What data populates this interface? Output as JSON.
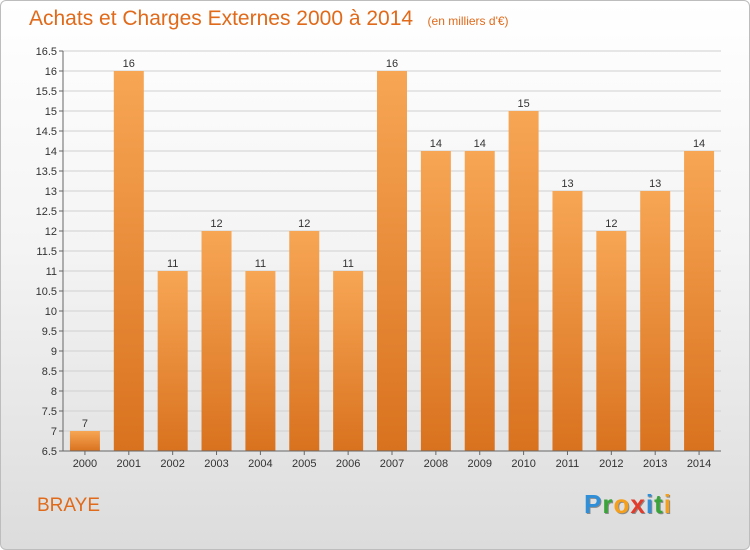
{
  "header": {
    "title": "Achats et Charges Externes 2000 à 2014",
    "subtitle": "(en milliers d'€)"
  },
  "footer": {
    "location": "BRAYE",
    "logo_text": "Proxiti",
    "logo_letters": [
      "P",
      "r",
      "o",
      "x",
      "i",
      "t",
      "i"
    ],
    "logo_colors": [
      "#2f8fd8",
      "#3aa33a",
      "#f4a01c",
      "#e33b2b",
      "#2f8fd8",
      "#3aa33a",
      "#f4a01c"
    ]
  },
  "chart_data": {
    "type": "bar",
    "title": "Achats et Charges Externes 2000 à 2014",
    "subtitle": "(en milliers d'€)",
    "xlabel": "",
    "ylabel": "",
    "categories": [
      "2000",
      "2001",
      "2002",
      "2003",
      "2004",
      "2005",
      "2006",
      "2007",
      "2008",
      "2009",
      "2010",
      "2011",
      "2012",
      "2013",
      "2014"
    ],
    "values": [
      7,
      16,
      11,
      12,
      11,
      12,
      11,
      16,
      14,
      14,
      15,
      13,
      12,
      13,
      14
    ],
    "value_labels": [
      "7",
      "16",
      "11",
      "12",
      "11",
      "12",
      "11",
      "16",
      "14",
      "14",
      "15",
      "13",
      "12",
      "13",
      "14"
    ],
    "ylim": [
      6.5,
      16.5
    ],
    "yticks": [
      6.5,
      7,
      7.5,
      8,
      8.5,
      9,
      9.5,
      10,
      10.5,
      11,
      11.5,
      12,
      12.5,
      13,
      13.5,
      14,
      14.5,
      15,
      15.5,
      16,
      16.5
    ],
    "ytick_labels": [
      "6.5",
      "7",
      "7.5",
      "8",
      "8.5",
      "9",
      "9.5",
      "10",
      "10.5",
      "11",
      "11.5",
      "12",
      "12.5",
      "13",
      "13.5",
      "14",
      "14.5",
      "15",
      "15.5",
      "16",
      "16.5"
    ],
    "grid": true,
    "colors": {
      "bar_top": "#f7a654",
      "bar_bottom": "#d9721f",
      "grid": "#d0d0d0",
      "text": "#333333"
    }
  }
}
